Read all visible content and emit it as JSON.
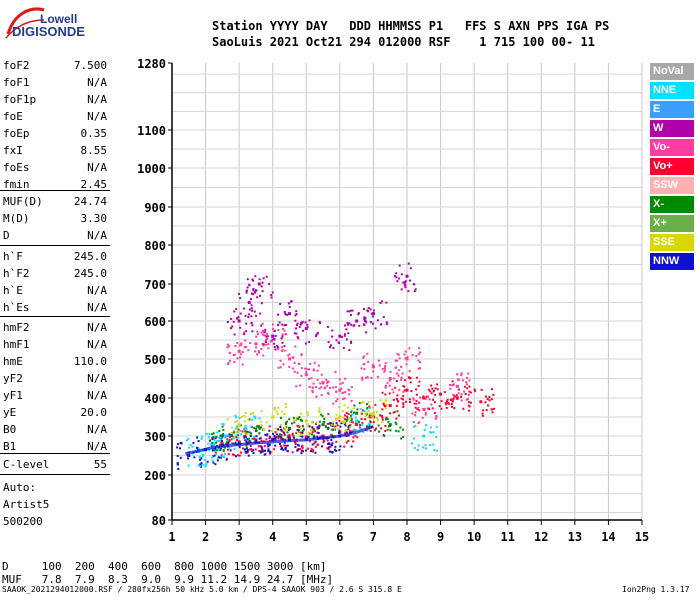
{
  "logo": {
    "top": "Lowell",
    "bottom": "DIGISONDE"
  },
  "header": {
    "line1": "Station YYYY DAY   DDD HHMMSS P1   FFS S AXN PPS IGA PS",
    "line2": "SaoLuis 2021 Oct21 294 012000 RSF    1 715 100 00- 11"
  },
  "params_a": [
    {
      "k": "foF2",
      "v": "7.500"
    },
    {
      "k": "foF1",
      "v": "N/A"
    },
    {
      "k": "foF1p",
      "v": "N/A"
    },
    {
      "k": "foE",
      "v": "N/A"
    },
    {
      "k": "foEp",
      "v": "0.35"
    },
    {
      "k": "fxI",
      "v": "8.55"
    },
    {
      "k": "foEs",
      "v": "N/A"
    },
    {
      "k": "fmin",
      "v": "2.45"
    }
  ],
  "params_b": [
    {
      "k": "MUF(D)",
      "v": "24.74"
    },
    {
      "k": "M(D)",
      "v": "3.30"
    },
    {
      "k": "D",
      "v": "N/A"
    }
  ],
  "params_c": [
    {
      "k": "h`F",
      "v": "245.0"
    },
    {
      "k": "h`F2",
      "v": "245.0"
    },
    {
      "k": "h`E",
      "v": "N/A"
    },
    {
      "k": "h`Es",
      "v": "N/A"
    }
  ],
  "params_d": [
    {
      "k": "hmF2",
      "v": "N/A"
    },
    {
      "k": "hmF1",
      "v": "N/A"
    },
    {
      "k": "hmE",
      "v": "110.0"
    },
    {
      "k": "yF2",
      "v": "N/A"
    },
    {
      "k": "yF1",
      "v": "N/A"
    },
    {
      "k": "yE",
      "v": "20.0"
    },
    {
      "k": "B0",
      "v": "N/A"
    },
    {
      "k": "B1",
      "v": "N/A"
    }
  ],
  "params_e": [
    {
      "k": "C-level",
      "v": "55"
    }
  ],
  "extra": {
    "line1": "Auto:",
    "line2": "Artist5",
    "line3": "500200"
  },
  "legend": [
    {
      "label": "NoVal",
      "color": "#a8a8a8"
    },
    {
      "label": "NNE",
      "color": "#00e0ff"
    },
    {
      "label": "E",
      "color": "#3aa0ff"
    },
    {
      "label": "W",
      "color": "#b000a8"
    },
    {
      "label": "Vo-",
      "color": "#ff3ca0"
    },
    {
      "label": "Vo+",
      "color": "#ff0030"
    },
    {
      "label": "SSW",
      "color": "#ffb0b0"
    },
    {
      "label": "X-",
      "color": "#008a00"
    },
    {
      "label": "X+",
      "color": "#6ab04a"
    },
    {
      "label": "SSE",
      "color": "#d8d800"
    },
    {
      "label": "NNW",
      "color": "#1010d0"
    }
  ],
  "bottom_table": {
    "row1": "D     100  200  400  600  800 1000 1500 3000 [km]",
    "row2": "MUF   7.8  7.9  8.3  9.0  9.9 11.2 14.9 24.7 [MHz]"
  },
  "footer": {
    "left": "SAAOK_2021294012000.RSF / 280fx256h 50 kHz 5.0 km / DPS-4 SAAOK 903 / 2.6 S 315.8 E",
    "right": "Ion2Png 1.3.17"
  },
  "chart_data": {
    "type": "scatter",
    "title": "",
    "xlabel": "",
    "ylabel": "",
    "xlim": [
      1,
      15
    ],
    "ylim": [
      80,
      1280
    ],
    "x_ticks": [
      1,
      2,
      3,
      4,
      5,
      6,
      7,
      8,
      9,
      10,
      11,
      12,
      13,
      14,
      15
    ],
    "y_ticks": [
      80,
      200,
      300,
      400,
      500,
      600,
      700,
      800,
      900,
      1000,
      1100,
      1280
    ],
    "grid": true,
    "series": [
      {
        "color": "#ff0030",
        "points": [
          [
            2.5,
            280
          ],
          [
            3.0,
            285
          ],
          [
            3.5,
            290
          ],
          [
            4.0,
            292
          ],
          [
            4.5,
            295
          ],
          [
            5.0,
            298
          ],
          [
            5.5,
            300
          ],
          [
            6.0,
            310
          ],
          [
            6.5,
            330
          ],
          [
            7.0,
            350
          ],
          [
            7.5,
            380
          ],
          [
            8.0,
            420
          ],
          [
            8.5,
            400
          ],
          [
            9.0,
            410
          ],
          [
            9.5,
            400
          ],
          [
            10.2,
            390
          ]
        ]
      },
      {
        "color": "#ff3ca0",
        "points": [
          [
            3.0,
            520
          ],
          [
            3.5,
            540
          ],
          [
            4.0,
            560
          ],
          [
            4.5,
            500
          ],
          [
            5.0,
            460
          ],
          [
            5.5,
            440
          ],
          [
            6.0,
            420
          ],
          [
            7.0,
            480
          ],
          [
            7.5,
            450
          ],
          [
            8.0,
            500
          ],
          [
            8.5,
            370
          ],
          [
            9.5,
            430
          ]
        ]
      },
      {
        "color": "#1010d0",
        "points": [
          [
            1.5,
            250
          ],
          [
            2.0,
            265
          ],
          [
            2.5,
            275
          ],
          [
            3.0,
            280
          ],
          [
            3.5,
            285
          ],
          [
            4.0,
            290
          ],
          [
            4.5,
            290
          ],
          [
            5.0,
            292
          ],
          [
            5.5,
            295
          ],
          [
            6.0,
            300
          ]
        ]
      },
      {
        "color": "#b000a8",
        "points": [
          [
            3.0,
            600
          ],
          [
            3.3,
            650
          ],
          [
            3.6,
            700
          ],
          [
            4.0,
            560
          ],
          [
            4.5,
            620
          ],
          [
            5.0,
            580
          ],
          [
            6.0,
            560
          ],
          [
            6.5,
            600
          ],
          [
            7.0,
            620
          ],
          [
            8.0,
            720
          ]
        ]
      },
      {
        "color": "#00e0ff",
        "points": [
          [
            1.8,
            260
          ],
          [
            2.2,
            280
          ],
          [
            2.6,
            300
          ],
          [
            3.2,
            320
          ],
          [
            6.5,
            340
          ],
          [
            8.5,
            300
          ]
        ]
      },
      {
        "color": "#008a00",
        "points": [
          [
            2.5,
            300
          ],
          [
            3.2,
            310
          ],
          [
            4.5,
            320
          ],
          [
            5.5,
            330
          ],
          [
            6.5,
            360
          ],
          [
            7.5,
            330
          ]
        ]
      },
      {
        "color": "#d8d800",
        "points": [
          [
            3.0,
            330
          ],
          [
            4.0,
            350
          ],
          [
            5.0,
            340
          ],
          [
            6.0,
            350
          ],
          [
            7.0,
            360
          ]
        ]
      }
    ]
  }
}
